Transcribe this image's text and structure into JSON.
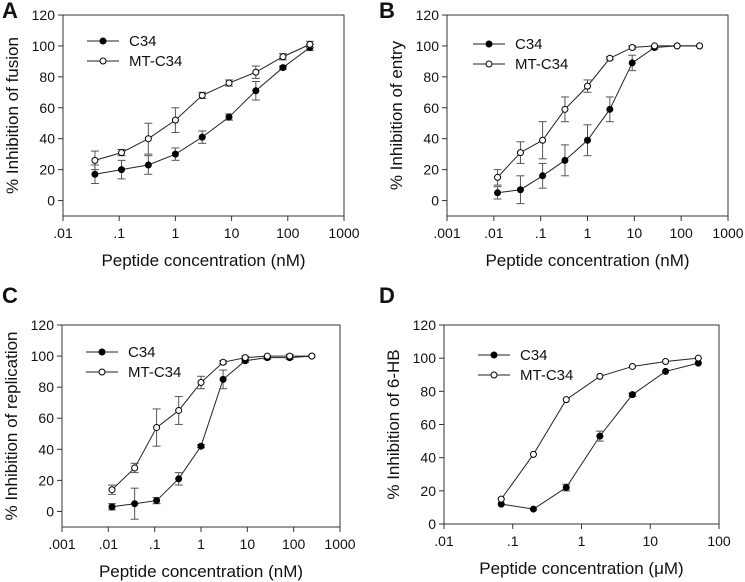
{
  "chart_data": [
    {
      "panel": "A",
      "type": "line",
      "xlabel": "Peptide concentration (nM)",
      "ylabel": "% Inhibition of fusion",
      "xscale": "log",
      "xlim": [
        0.01,
        1000
      ],
      "ylim": [
        -10,
        120
      ],
      "xticks": [
        ".01",
        ".1",
        "1",
        "10",
        "100",
        "1000"
      ],
      "yticks": [
        "0",
        "20",
        "40",
        "60",
        "80",
        "100",
        "120"
      ],
      "legend": "top-left",
      "x": [
        0.037,
        0.11,
        0.33,
        1,
        3,
        9,
        27,
        82,
        247
      ],
      "series": [
        {
          "name": "C34",
          "marker": "filled",
          "values": [
            17,
            20,
            23,
            30,
            41,
            54,
            71,
            86,
            99
          ],
          "errors": [
            6,
            6,
            6,
            4,
            4,
            2,
            6,
            1,
            2
          ]
        },
        {
          "name": "MT-C34",
          "marker": "open",
          "values": [
            26,
            31,
            40,
            52,
            68,
            76,
            83,
            93,
            101
          ],
          "errors": [
            6,
            2,
            10,
            8,
            2,
            2,
            4,
            2,
            2
          ]
        }
      ]
    },
    {
      "panel": "B",
      "type": "line",
      "xlabel": "Peptide concentration (nM)",
      "ylabel": "% Inhibition of entry",
      "xscale": "log",
      "xlim": [
        0.001,
        1000
      ],
      "ylim": [
        -10,
        120
      ],
      "xticks": [
        ".001",
        ".01",
        ".1",
        "1",
        "10",
        "100",
        "1000"
      ],
      "yticks": [
        "0",
        "20",
        "40",
        "60",
        "80",
        "100",
        "120"
      ],
      "legend": "top-left",
      "x": [
        0.012,
        0.037,
        0.11,
        0.33,
        1,
        3,
        9,
        27,
        82,
        247
      ],
      "series": [
        {
          "name": "C34",
          "marker": "filled",
          "values": [
            5,
            7,
            16,
            26,
            39,
            59,
            89,
            99,
            100,
            100
          ],
          "errors": [
            4,
            9,
            8,
            10,
            10,
            8,
            5,
            1,
            0,
            0
          ]
        },
        {
          "name": "MT-C34",
          "marker": "open",
          "values": [
            15,
            31,
            39,
            59,
            74,
            92,
            99,
            100,
            100,
            100
          ],
          "errors": [
            5,
            7,
            12,
            8,
            4,
            1,
            1,
            0,
            0,
            0
          ]
        }
      ]
    },
    {
      "panel": "C",
      "type": "line",
      "xlabel": "Peptide concentration (nM)",
      "ylabel": "% Inhibition of replication",
      "xscale": "log",
      "xlim": [
        0.001,
        1000
      ],
      "ylim": [
        -10,
        120
      ],
      "xticks": [
        ".001",
        ".01",
        ".1",
        "1",
        "10",
        "100",
        "1000"
      ],
      "yticks": [
        "0",
        "20",
        "40",
        "60",
        "80",
        "100",
        "120"
      ],
      "legend": "top-left",
      "x": [
        0.012,
        0.037,
        0.11,
        0.33,
        1,
        3,
        9,
        27,
        82,
        247
      ],
      "series": [
        {
          "name": "C34",
          "marker": "filled",
          "values": [
            3,
            5,
            7,
            21,
            42,
            85,
            97,
            99,
            99,
            100
          ],
          "errors": [
            2,
            10,
            2,
            4,
            1,
            6,
            1,
            1,
            1,
            0
          ]
        },
        {
          "name": "MT-C34",
          "marker": "open",
          "values": [
            14,
            28,
            54,
            65,
            83,
            96,
            99,
            100,
            100,
            100
          ],
          "errors": [
            3,
            3,
            12,
            9,
            4,
            1,
            1,
            0,
            1,
            0
          ]
        }
      ]
    },
    {
      "panel": "D",
      "type": "line",
      "xlabel": "Peptide concentration (μM)",
      "ylabel": "% Inhibition of 6-HB",
      "xscale": "log",
      "xlim": [
        0.01,
        100
      ],
      "ylim": [
        0,
        120
      ],
      "xticks": [
        ".01",
        ".1",
        "1",
        "10",
        "100"
      ],
      "yticks": [
        "0",
        "20",
        "40",
        "60",
        "80",
        "100",
        "120"
      ],
      "legend": "top-left",
      "x": [
        0.068,
        0.2,
        0.6,
        1.85,
        5.5,
        16.7,
        50
      ],
      "series": [
        {
          "name": "C34",
          "marker": "filled",
          "values": [
            12,
            9,
            22,
            53,
            78,
            92,
            97
          ],
          "errors": [
            0,
            0,
            2,
            3,
            1,
            0,
            0
          ]
        },
        {
          "name": "MT-C34",
          "marker": "open",
          "values": [
            15,
            42,
            75,
            89,
            95,
            98,
            100
          ],
          "errors": [
            0,
            0,
            0,
            0,
            0,
            0,
            0
          ]
        }
      ]
    }
  ]
}
